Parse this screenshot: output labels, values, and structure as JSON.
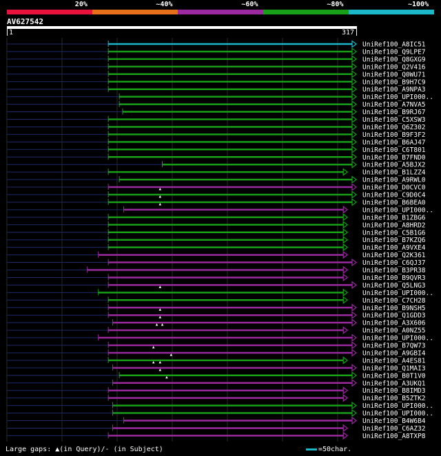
{
  "legend": {
    "segments": [
      {
        "label": "20%",
        "color": "#e8123c"
      },
      {
        "label": "~40%",
        "color": "#e86f1a"
      },
      {
        "label": "~60%",
        "color": "#9b2aa0"
      },
      {
        "label": "~80%",
        "color": "#18a018"
      },
      {
        "label": "~100%",
        "color": "#1ab8c8"
      }
    ]
  },
  "query": {
    "title": "AV627542",
    "start_label": "1",
    "end_label": "317",
    "length": 317
  },
  "hits": [
    {
      "label": "UniRef100_A8IC51",
      "start": 92,
      "end": 317,
      "color": "#1ab8c8",
      "arrow": "open",
      "gaps": []
    },
    {
      "label": "UniRef100_Q9LPE7",
      "start": 92,
      "end": 317,
      "color": "#18a018",
      "arrow": "open",
      "gaps": []
    },
    {
      "label": "UniRef100_Q8GXG9",
      "start": 92,
      "end": 317,
      "color": "#18a018",
      "arrow": "open",
      "gaps": []
    },
    {
      "label": "UniRef100_Q2V416",
      "start": 92,
      "end": 317,
      "color": "#18a018",
      "arrow": "open",
      "gaps": []
    },
    {
      "label": "UniRef100_Q0WU71",
      "start": 92,
      "end": 317,
      "color": "#18a018",
      "arrow": "open",
      "gaps": []
    },
    {
      "label": "UniRef100_B9H7C9",
      "start": 92,
      "end": 317,
      "color": "#18a018",
      "arrow": "open",
      "gaps": []
    },
    {
      "label": "UniRef100_A9NPA3",
      "start": 92,
      "end": 317,
      "color": "#18a018",
      "arrow": "open",
      "gaps": []
    },
    {
      "label": "UniRef100_UPI000..",
      "start": 102,
      "end": 317,
      "color": "#18a018",
      "arrow": "open",
      "gaps": []
    },
    {
      "label": "UniRef100_A7NVA5",
      "start": 102,
      "end": 317,
      "color": "#18a018",
      "arrow": "open",
      "gaps": []
    },
    {
      "label": "UniRef100_B9RJ67",
      "start": 105,
      "end": 317,
      "color": "#18a018",
      "arrow": "open",
      "gaps": []
    },
    {
      "label": "UniRef100_C5XSW3",
      "start": 92,
      "end": 317,
      "color": "#18a018",
      "arrow": "open",
      "gaps": []
    },
    {
      "label": "UniRef100_Q6Z302",
      "start": 92,
      "end": 317,
      "color": "#18a018",
      "arrow": "open",
      "gaps": []
    },
    {
      "label": "UniRef100_B9F3F2",
      "start": 92,
      "end": 317,
      "color": "#18a018",
      "arrow": "open",
      "gaps": []
    },
    {
      "label": "UniRef100_B6AJ47",
      "start": 92,
      "end": 317,
      "color": "#18a018",
      "arrow": "open",
      "gaps": []
    },
    {
      "label": "UniRef100_C6T801",
      "start": 92,
      "end": 317,
      "color": "#18a018",
      "arrow": "open",
      "gaps": []
    },
    {
      "label": "UniRef100_B7FND0",
      "start": 92,
      "end": 317,
      "color": "#18a018",
      "arrow": "open",
      "gaps": []
    },
    {
      "label": "UniRef100_A5BJX2",
      "start": 141,
      "end": 317,
      "color": "#18a018",
      "arrow": "open",
      "gaps": []
    },
    {
      "label": "UniRef100_B1LZZ4",
      "start": 92,
      "end": 309,
      "color": "#18a018",
      "arrow": "open",
      "gaps": []
    },
    {
      "label": "UniRef100_A9RWL0",
      "start": 102,
      "end": 317,
      "color": "#18a018",
      "arrow": "open",
      "gaps": []
    },
    {
      "label": "UniRef100_D0CVC0",
      "start": 92,
      "end": 317,
      "color": "#9b2aa0",
      "arrow": "open",
      "gaps": [
        139
      ]
    },
    {
      "label": "UniRef100_C9D0C4",
      "start": 92,
      "end": 317,
      "color": "#18a018",
      "arrow": "open",
      "gaps": [
        139
      ]
    },
    {
      "label": "UniRef100_B6BEA0",
      "start": 92,
      "end": 317,
      "color": "#18a018",
      "arrow": "open",
      "gaps": [
        139
      ]
    },
    {
      "label": "UniRef100_UPI000..",
      "start": 106,
      "end": 309,
      "color": "#9b2aa0",
      "arrow": "open",
      "gaps": []
    },
    {
      "label": "UniRef100_B1ZBG6",
      "start": 92,
      "end": 309,
      "color": "#18a018",
      "arrow": "open",
      "gaps": []
    },
    {
      "label": "UniRef100_A8HRD2",
      "start": 92,
      "end": 309,
      "color": "#18a018",
      "arrow": "open",
      "gaps": []
    },
    {
      "label": "UniRef100_C5B1G6",
      "start": 92,
      "end": 309,
      "color": "#18a018",
      "arrow": "open",
      "gaps": []
    },
    {
      "label": "UniRef100_B7KZQ6",
      "start": 92,
      "end": 309,
      "color": "#18a018",
      "arrow": "open",
      "gaps": []
    },
    {
      "label": "UniRef100_A9VXE4",
      "start": 92,
      "end": 309,
      "color": "#18a018",
      "arrow": "open",
      "gaps": []
    },
    {
      "label": "UniRef100_Q2K361",
      "start": 83,
      "end": 309,
      "color": "#9b2aa0",
      "arrow": "open",
      "gaps": []
    },
    {
      "label": "UniRef100_C6QJ37",
      "start": 92,
      "end": 317,
      "color": "#9b2aa0",
      "arrow": "open",
      "gaps": []
    },
    {
      "label": "UniRef100_B3PR38",
      "start": 73,
      "end": 309,
      "color": "#9b2aa0",
      "arrow": "open",
      "gaps": []
    },
    {
      "label": "UniRef100_B9QVR3",
      "start": 92,
      "end": 309,
      "color": "#9b2aa0",
      "arrow": "open",
      "gaps": []
    },
    {
      "label": "UniRef100_Q5LNG3",
      "start": 92,
      "end": 317,
      "color": "#9b2aa0",
      "arrow": "open",
      "gaps": [
        139
      ]
    },
    {
      "label": "UniRef100_UPI000..",
      "start": 83,
      "end": 309,
      "color": "#18a018",
      "arrow": "open",
      "gaps": []
    },
    {
      "label": "UniRef100_C7CH28",
      "start": 92,
      "end": 309,
      "color": "#18a018",
      "arrow": "open",
      "gaps": []
    },
    {
      "label": "UniRef100_B9NSH5",
      "start": 92,
      "end": 317,
      "color": "#9b2aa0",
      "arrow": "open",
      "gaps": [
        139
      ]
    },
    {
      "label": "UniRef100_Q1GDD3",
      "start": 92,
      "end": 317,
      "color": "#9b2aa0",
      "arrow": "open",
      "gaps": [
        139
      ]
    },
    {
      "label": "UniRef100_A3X606",
      "start": 96,
      "end": 317,
      "color": "#9b2aa0",
      "arrow": "open",
      "gaps": [
        136,
        141
      ]
    },
    {
      "label": "UniRef100_A0NZ55",
      "start": 92,
      "end": 309,
      "color": "#9b2aa0",
      "arrow": "open",
      "gaps": []
    },
    {
      "label": "UniRef100_UPI000..",
      "start": 83,
      "end": 317,
      "color": "#9b2aa0",
      "arrow": "open",
      "gaps": []
    },
    {
      "label": "UniRef100_B7QW73",
      "start": 92,
      "end": 317,
      "color": "#9b2aa0",
      "arrow": "open",
      "gaps": [
        133
      ]
    },
    {
      "label": "UniRef100_A9GBI4",
      "start": 92,
      "end": 317,
      "color": "#9b2aa0",
      "arrow": "open",
      "gaps": [
        149
      ]
    },
    {
      "label": "UniRef100_A4ES81",
      "start": 92,
      "end": 309,
      "color": "#18a018",
      "arrow": "open",
      "gaps": [
        133,
        139
      ]
    },
    {
      "label": "UniRef100_Q1MAI3",
      "start": 96,
      "end": 317,
      "color": "#9b2aa0",
      "arrow": "open",
      "gaps": [
        139
      ]
    },
    {
      "label": "UniRef100_B0T1V0",
      "start": 102,
      "end": 317,
      "color": "#18a018",
      "arrow": "open",
      "gaps": [
        145
      ]
    },
    {
      "label": "UniRef100_A3UKQ1",
      "start": 96,
      "end": 317,
      "color": "#9b2aa0",
      "arrow": "open",
      "gaps": []
    },
    {
      "label": "UniRef100_B8IMD3",
      "start": 92,
      "end": 309,
      "color": "#9b2aa0",
      "arrow": "open",
      "gaps": []
    },
    {
      "label": "UniRef100_B5ZTK2",
      "start": 92,
      "end": 309,
      "color": "#9b2aa0",
      "arrow": "open",
      "gaps": []
    },
    {
      "label": "UniRef100_UPI000..",
      "start": 96,
      "end": 317,
      "color": "#18a018",
      "arrow": "open",
      "gaps": []
    },
    {
      "label": "UniRef100_UPI000..",
      "start": 96,
      "end": 317,
      "color": "#18a018",
      "arrow": "open",
      "gaps": []
    },
    {
      "label": "UniRef100_B4W6B4",
      "start": 106,
      "end": 317,
      "color": "#9b2aa0",
      "arrow": "open",
      "gaps": []
    },
    {
      "label": "UniRef100_C6AZ32",
      "start": 96,
      "end": 309,
      "color": "#9b2aa0",
      "arrow": "open",
      "gaps": []
    },
    {
      "label": "UniRef100_A8TXP8",
      "start": 92,
      "end": 309,
      "color": "#9b2aa0",
      "arrow": "open",
      "gaps": []
    }
  ],
  "footer": {
    "gaps_prefix": "Large gaps: ",
    "gaps_query_glyph": "▲",
    "gaps_query_text": "(in Query)/- (in Subject)",
    "scale_text": "=50char.",
    "scale_color": "#1ab8c8"
  },
  "colors": {
    "unaligned": "#1c2a6a",
    "gridline": "#2a2a2a",
    "gap_marker": "#ffffff"
  }
}
